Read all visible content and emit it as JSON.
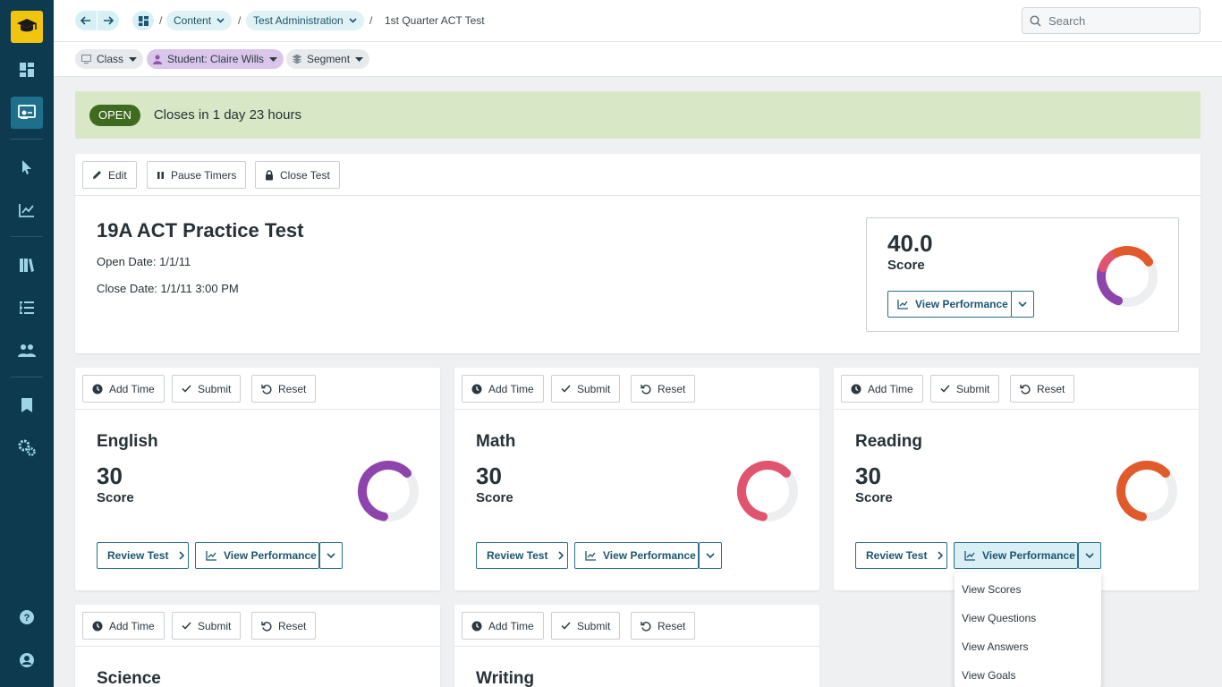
{
  "colors": {
    "sidebar": "#0d3a4f",
    "accent": "#1d6f8c",
    "open_badge": "#3f6b20",
    "banner": "#d8e8c6"
  },
  "sidebar": {
    "logo_icon": "graduation-cap-icon",
    "items": [
      {
        "icon": "dashboard-icon"
      },
      {
        "icon": "test-admin-icon",
        "active": true
      },
      {
        "icon": "cursor-icon"
      },
      {
        "icon": "chart-icon"
      },
      {
        "icon": "library-icon"
      },
      {
        "icon": "list-icon"
      },
      {
        "icon": "users-icon"
      },
      {
        "icon": "bookmark-icon"
      },
      {
        "icon": "settings-icon"
      },
      {
        "icon": "help-icon"
      },
      {
        "icon": "account-icon"
      }
    ]
  },
  "breadcrumb": {
    "content": "Content",
    "test_admin": "Test Administration",
    "current": "1st Quarter ACT Test"
  },
  "search": {
    "placeholder": "Search"
  },
  "filters": {
    "class": "Class",
    "student": "Student: Claire Wills",
    "segment": "Segment"
  },
  "banner": {
    "status": "OPEN",
    "text": "Closes in 1 day 23 hours"
  },
  "test": {
    "toolbar": {
      "edit": "Edit",
      "pause": "Pause Timers",
      "close": "Close Test"
    },
    "title": "19A ACT Practice Test",
    "open_date": "Open Date: 1/1/11",
    "close_date": "Close Date: 1/1/11 3:00 PM",
    "score": "40.0",
    "score_label": "Score",
    "view_performance": "View Performance",
    "ring_segments": [
      {
        "color": "#8e44ad",
        "fraction": 0.25
      },
      {
        "color": "#e0546e",
        "fraction": 0.13
      },
      {
        "color": "#e05a2b",
        "fraction": 0.22
      }
    ]
  },
  "section_toolbar": {
    "add_time": "Add Time",
    "submit": "Submit",
    "reset": "Reset"
  },
  "section_buttons": {
    "review": "Review Test",
    "view_performance": "View Performance"
  },
  "sections": [
    {
      "name": "English",
      "score": "30",
      "score_label": "Score",
      "ring_color": "#8e44ad",
      "fraction": 0.6
    },
    {
      "name": "Math",
      "score": "30",
      "score_label": "Score",
      "ring_color": "#e0546e",
      "fraction": 0.6
    },
    {
      "name": "Reading",
      "score": "30",
      "score_label": "Score",
      "ring_color": "#e05a2b",
      "fraction": 0.6
    },
    {
      "name": "Science"
    },
    {
      "name": "Writing"
    }
  ],
  "dropdown": {
    "items": [
      "View Scores",
      "View Questions",
      "View Answers",
      "View Goals"
    ]
  }
}
